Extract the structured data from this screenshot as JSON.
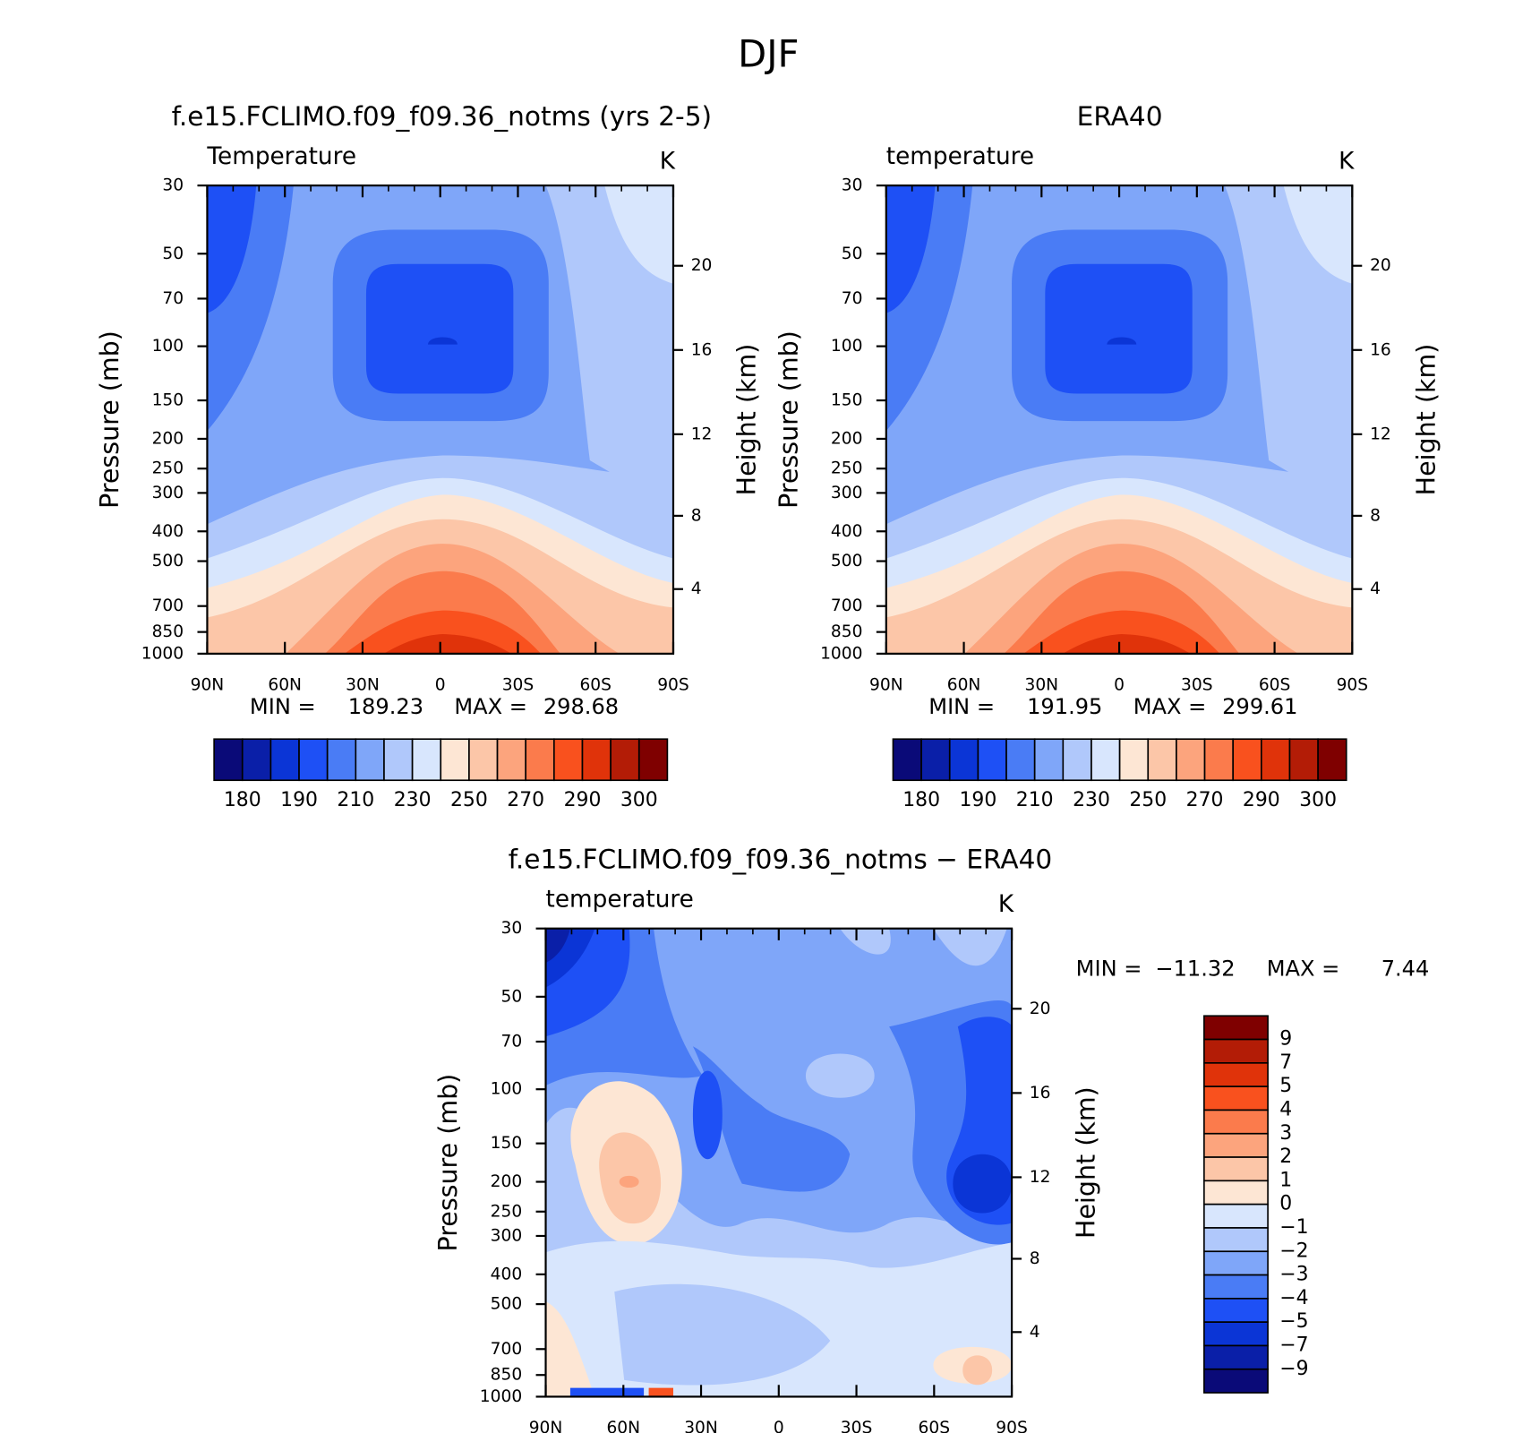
{
  "title": "DJF",
  "chart_data": [
    {
      "type": "contour",
      "title": "f.e15.FCLIMO.f09_f09.36_notms (yrs 2-5)",
      "subtitle": "Temperature",
      "units": "K",
      "ylabel": "Pressure (mb)",
      "y2label": "Height (km)",
      "log_y": true,
      "ylim": [
        30,
        1000
      ],
      "yticks": [
        30,
        50,
        70,
        100,
        150,
        200,
        250,
        300,
        400,
        500,
        700,
        850,
        1000
      ],
      "y2ticks": [
        20,
        16,
        12,
        8,
        4
      ],
      "xlim": [
        90,
        -90
      ],
      "xticks": [
        {
          "value": 90,
          "label": "90N"
        },
        {
          "value": 60,
          "label": "60N"
        },
        {
          "value": 30,
          "label": "30N"
        },
        0,
        {
          "value": -30,
          "label": "30S"
        },
        {
          "value": -60,
          "label": "60S"
        },
        {
          "value": -90,
          "label": "90S"
        }
      ],
      "min_label": "MIN =",
      "min": 189.23,
      "max_label": "MAX =",
      "max": 298.68,
      "colorbar": {
        "orientation": "horizontal",
        "colors": [
          "#0a0a78",
          "#0a1fa8",
          "#0b35d6",
          "#1e50f5",
          "#4a7cf5",
          "#7fa6f9",
          "#b0c8fb",
          "#d8e6fd",
          "#fde6d4",
          "#fcc6a8",
          "#fca47d",
          "#fb7b4c",
          "#f9511e",
          "#e0330a",
          "#b31c06",
          "#7f0000"
        ],
        "labels": [
          180,
          190,
          210,
          230,
          250,
          270,
          290,
          300
        ]
      }
    },
    {
      "type": "contour",
      "title": "ERA40",
      "subtitle": "temperature",
      "units": "K",
      "ylabel": "Pressure (mb)",
      "y2label": "Height (km)",
      "log_y": true,
      "ylim": [
        30,
        1000
      ],
      "yticks": [
        30,
        50,
        70,
        100,
        150,
        200,
        250,
        300,
        400,
        500,
        700,
        850,
        1000
      ],
      "y2ticks": [
        20,
        16,
        12,
        8,
        4
      ],
      "xlim": [
        90,
        -90
      ],
      "xticks": [
        {
          "value": 90,
          "label": "90N"
        },
        {
          "value": 60,
          "label": "60N"
        },
        {
          "value": 30,
          "label": "30N"
        },
        0,
        {
          "value": -30,
          "label": "30S"
        },
        {
          "value": -60,
          "label": "60S"
        },
        {
          "value": -90,
          "label": "90S"
        }
      ],
      "min_label": "MIN =",
      "min": 191.95,
      "max_label": "MAX =",
      "max": 299.61,
      "colorbar": {
        "orientation": "horizontal",
        "colors": [
          "#0a0a78",
          "#0a1fa8",
          "#0b35d6",
          "#1e50f5",
          "#4a7cf5",
          "#7fa6f9",
          "#b0c8fb",
          "#d8e6fd",
          "#fde6d4",
          "#fcc6a8",
          "#fca47d",
          "#fb7b4c",
          "#f9511e",
          "#e0330a",
          "#b31c06",
          "#7f0000"
        ],
        "labels": [
          180,
          190,
          210,
          230,
          250,
          270,
          290,
          300
        ]
      }
    },
    {
      "type": "contour",
      "title": "f.e15.FCLIMO.f09_f09.36_notms − ERA40",
      "subtitle": "temperature",
      "units": "K",
      "ylabel": "Pressure (mb)",
      "y2label": "Height (km)",
      "log_y": true,
      "ylim": [
        30,
        1000
      ],
      "yticks": [
        30,
        50,
        70,
        100,
        150,
        200,
        250,
        300,
        400,
        500,
        700,
        850,
        1000
      ],
      "y2ticks": [
        20,
        16,
        12,
        8,
        4
      ],
      "xlim": [
        90,
        -90
      ],
      "xticks": [
        {
          "value": 90,
          "label": "90N"
        },
        {
          "value": 60,
          "label": "60N"
        },
        {
          "value": 30,
          "label": "30N"
        },
        0,
        {
          "value": -30,
          "label": "30S"
        },
        {
          "value": -60,
          "label": "60S"
        },
        {
          "value": -90,
          "label": "90S"
        }
      ],
      "min_label": "MIN =",
      "min": {
        "value": -11.32,
        "label": "−11.32"
      },
      "max_label": "MAX =",
      "max": 7.44,
      "colorbar": {
        "orientation": "vertical",
        "colors": [
          "#7f0000",
          "#b31c06",
          "#e0330a",
          "#f9511e",
          "#fb7b4c",
          "#fca47d",
          "#fcc6a8",
          "#fde6d4",
          "#d8e6fd",
          "#b0c8fb",
          "#7fa6f9",
          "#4a7cf5",
          "#1e50f5",
          "#0b35d6",
          "#0a1fa8",
          "#0a0a78"
        ],
        "labels": [
          9,
          7,
          5,
          4,
          3,
          2,
          1,
          0,
          {
            "value": -1,
            "label": "−1"
          },
          {
            "value": -2,
            "label": "−2"
          },
          {
            "value": -3,
            "label": "−3"
          },
          {
            "value": -4,
            "label": "−4"
          },
          {
            "value": -5,
            "label": "−5"
          },
          {
            "value": -7,
            "label": "−7"
          },
          {
            "value": -9,
            "label": "−9"
          }
        ]
      }
    }
  ]
}
